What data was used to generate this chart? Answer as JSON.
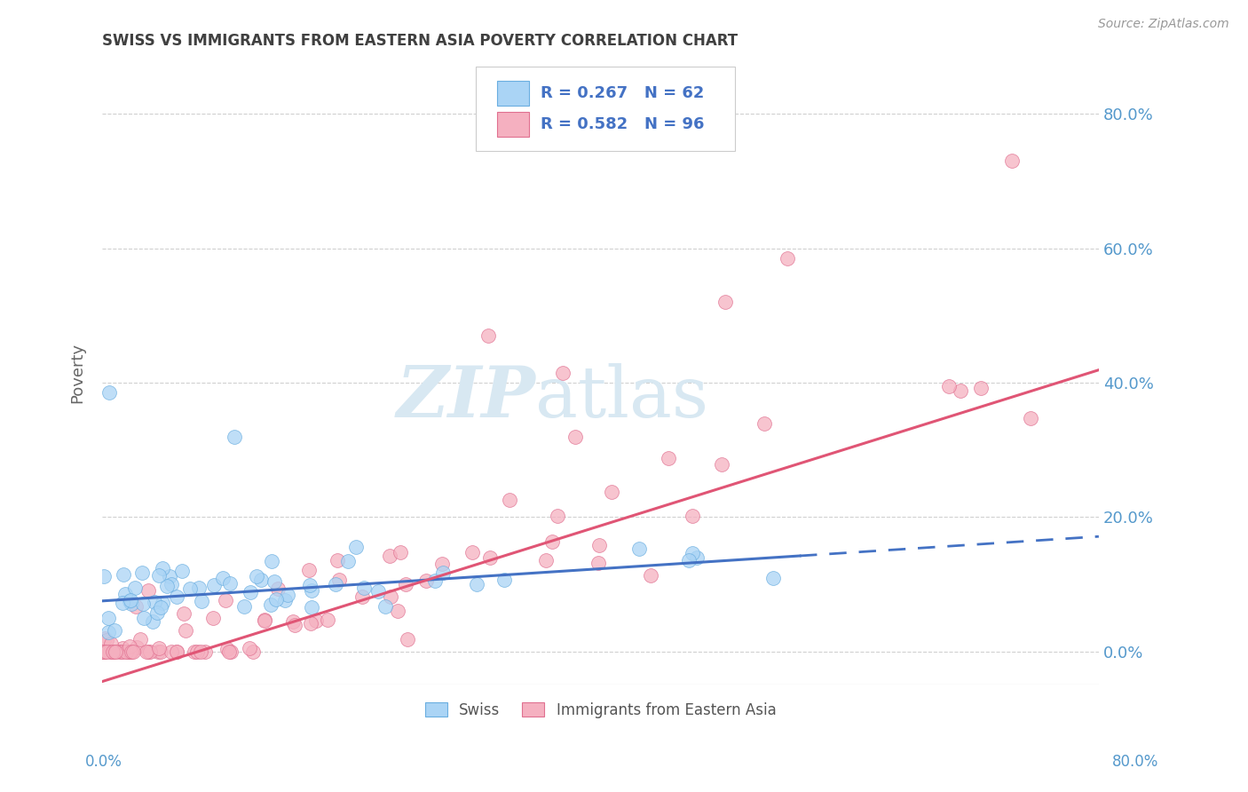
{
  "title": "SWISS VS IMMIGRANTS FROM EASTERN ASIA POVERTY CORRELATION CHART",
  "source": "Source: ZipAtlas.com",
  "ylabel": "Poverty",
  "ytick_positions": [
    0.0,
    0.2,
    0.4,
    0.6,
    0.8
  ],
  "xmin": 0.0,
  "xmax": 0.8,
  "ymin": -0.05,
  "ymax": 0.88,
  "swiss_R": 0.267,
  "swiss_N": 62,
  "imm_R": 0.582,
  "imm_N": 96,
  "swiss_color": "#aad4f5",
  "swiss_edge_color": "#6aaee0",
  "imm_color": "#f5b0c0",
  "imm_edge_color": "#e07090",
  "swiss_line_color": "#4472c4",
  "imm_line_color": "#e05575",
  "watermark_color": "#d8e8f2",
  "background_color": "#ffffff",
  "grid_color": "#d0d0d0",
  "title_color": "#404040",
  "axis_label_color": "#5599cc",
  "swiss_intercept": 0.075,
  "swiss_slope": 0.12,
  "imm_intercept": -0.045,
  "imm_slope": 0.58
}
